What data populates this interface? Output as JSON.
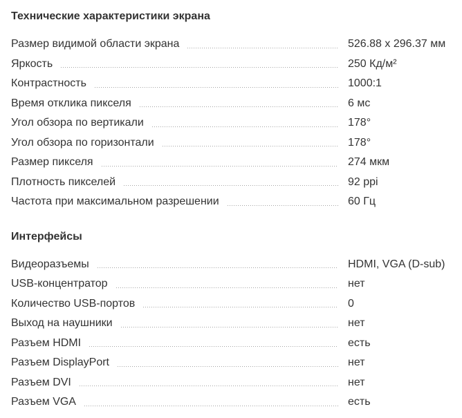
{
  "page": {
    "background": "#ffffff",
    "text_color": "#333333",
    "dot_leader_color": "#a3a3a3"
  },
  "sections": [
    {
      "title": "Технические характеристики экрана",
      "rows": [
        {
          "label": "Размер видимой области экрана",
          "value": "526.88 x 296.37 мм"
        },
        {
          "label": "Яркость",
          "value": "250 Кд/м²"
        },
        {
          "label": "Контрастность",
          "value": "1000:1"
        },
        {
          "label": "Время отклика пикселя",
          "value": "6 мс"
        },
        {
          "label": "Угол обзора по вертикали",
          "value": "178°"
        },
        {
          "label": "Угол обзора по горизонтали",
          "value": "178°"
        },
        {
          "label": "Размер пикселя",
          "value": "274 мкм"
        },
        {
          "label": "Плотность пикселей",
          "value": "92 ppi"
        },
        {
          "label": "Частота при максимальном разрешении",
          "value": "60 Гц"
        }
      ]
    },
    {
      "title": "Интерфейсы",
      "rows": [
        {
          "label": "Видеоразъемы",
          "value": "HDMI, VGA (D-sub)"
        },
        {
          "label": "USB-концентратор",
          "value": "нет"
        },
        {
          "label": "Количество USB-портов",
          "value": "0"
        },
        {
          "label": "Выход на наушники",
          "value": "нет"
        },
        {
          "label": "Разъем HDMI",
          "value": "есть"
        },
        {
          "label": "Разъем DisplayPort",
          "value": "нет"
        },
        {
          "label": "Разъем DVI",
          "value": "нет"
        },
        {
          "label": "Разъем VGA",
          "value": "есть"
        }
      ]
    }
  ]
}
